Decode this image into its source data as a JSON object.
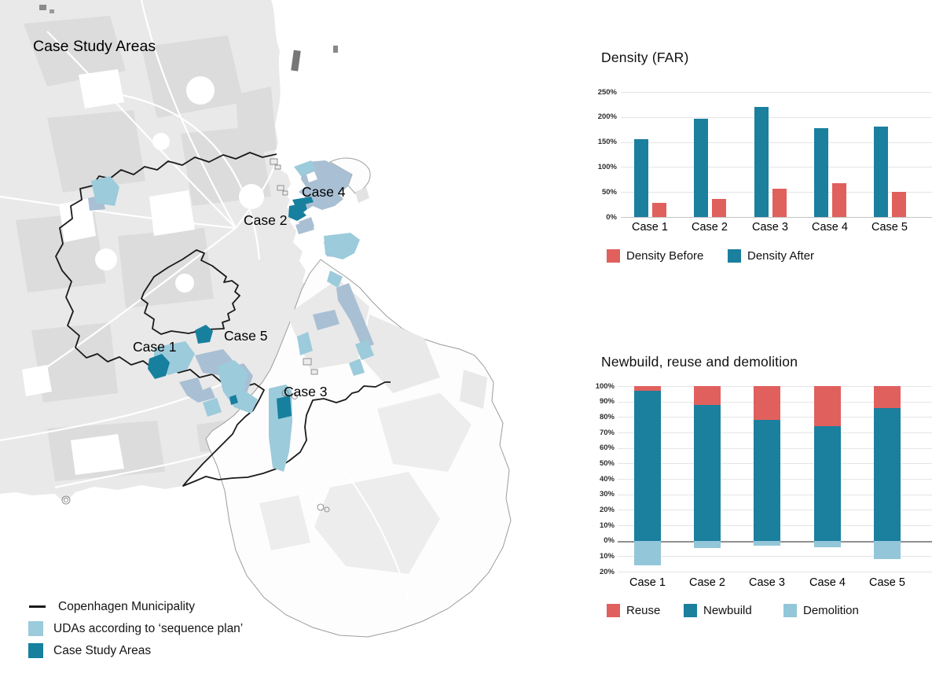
{
  "map": {
    "title": "Case Study Areas",
    "case_labels": {
      "case1": "Case 1",
      "case2": "Case 2",
      "case3": "Case 3",
      "case4": "Case 4",
      "case5": "Case 5"
    },
    "legend": [
      {
        "swatch": "line",
        "color": "#1a1a1a",
        "label": "Copenhagen Municipality"
      },
      {
        "swatch": "square",
        "color": "#9ccbdb",
        "label": "UDAs according to ‘sequence plan’"
      },
      {
        "swatch": "square",
        "color": "#17809e",
        "label": "Case Study Areas"
      }
    ],
    "colors": {
      "uda": "#9ccbdb",
      "uda_alt": "#a9bfd3",
      "case_area": "#17809e",
      "municipality_line": "#1a1a1a"
    }
  },
  "chart_data": [
    {
      "type": "bar",
      "title": "Density (FAR)",
      "categories": [
        "Case 1",
        "Case 2",
        "Case 3",
        "Case 4",
        "Case 5"
      ],
      "series": [
        {
          "name": "Density After",
          "color": "#1b7f9e",
          "values": [
            155,
            197,
            220,
            178,
            181
          ]
        },
        {
          "name": "Density Before",
          "color": "#e0605e",
          "values": [
            28,
            36,
            56,
            67,
            50
          ]
        }
      ],
      "legend": [
        {
          "label": "Density Before",
          "color": "#e0605e"
        },
        {
          "label": "Density After",
          "color": "#1b7f9e"
        }
      ],
      "ylim": [
        0,
        250
      ],
      "ytick_step": 50,
      "ytick_format": "percent",
      "grid": true,
      "legend_position": "bottom"
    },
    {
      "type": "stacked-bar",
      "title": "Newbuild, reuse and demolition",
      "categories": [
        "Case 1",
        "Case 2",
        "Case 3",
        "Case 4",
        "Case 5"
      ],
      "series": [
        {
          "name": "Reuse",
          "color": "#e0605e",
          "values": [
            3,
            12,
            22,
            26,
            14
          ]
        },
        {
          "name": "Newbuild",
          "color": "#1b7f9e",
          "values": [
            97,
            88,
            78,
            74,
            86
          ]
        },
        {
          "name": "Demolition",
          "color": "#93c6d8",
          "values": [
            -16,
            -5,
            -3,
            -4,
            -12
          ]
        }
      ],
      "legend": [
        {
          "label": "Reuse",
          "color": "#e0605e"
        },
        {
          "label": "Newbuild",
          "color": "#1b7f9e"
        },
        {
          "label": "Demolition",
          "color": "#93c6d8"
        }
      ],
      "stack_order": [
        "Newbuild",
        "Reuse",
        "Demolition"
      ],
      "ylim": [
        -20,
        100
      ],
      "ytick_step": 10,
      "ytick_abs_labels": true,
      "ytick_format": "percent",
      "grid": true,
      "legend_position": "bottom"
    }
  ]
}
